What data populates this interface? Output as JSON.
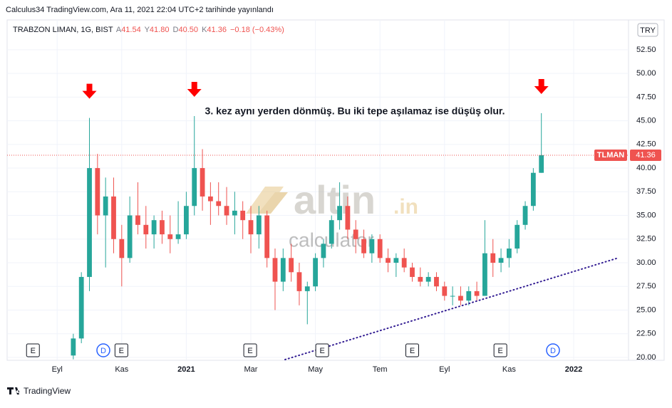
{
  "published": "Calculus34 TradingView.com, Ara 11, 2021 22:04 UTC+2 tarihinde yayınlandı",
  "footer": "TradingView",
  "currency_button": "TRY",
  "watermark": {
    "brand": "altin",
    "domain": ".in",
    "sub": "calculator"
  },
  "header": {
    "symbol": "TRABZON LIMAN, 1G, BIST",
    "fields": [
      {
        "label": "A",
        "value": "41.54"
      },
      {
        "label": "Y",
        "value": "41.80"
      },
      {
        "label": "D",
        "value": "40.50"
      },
      {
        "label": "K",
        "value": "41.36"
      }
    ],
    "change": "−0.18 (−0.43%)"
  },
  "chart_data": {
    "type": "candlestick",
    "annotation": "3. kez aynı yerden dönmüş. Bu iki tepe aşılamaz ise düşüş olur.",
    "symbol_tag": "TLMAN",
    "up_color": "#26a69a",
    "down_color": "#ef5350",
    "grid": true,
    "xlim": [
      -1.55,
      17.7
    ],
    "xticks": [
      {
        "value": 0,
        "label": "Eyl"
      },
      {
        "value": 2,
        "label": "Kas"
      },
      {
        "value": 4,
        "label": "2021"
      },
      {
        "value": 6,
        "label": "Mar"
      },
      {
        "value": 8,
        "label": "May"
      },
      {
        "value": 10,
        "label": "Tem"
      },
      {
        "value": 12,
        "label": "Eyl"
      },
      {
        "value": 14,
        "label": "Kas"
      },
      {
        "value": 16,
        "label": "2022"
      }
    ],
    "ylim": [
      19.77,
      55.5
    ],
    "yticks": [
      {
        "value": 20,
        "label": "20.00"
      },
      {
        "value": 22.5,
        "label": "22.50"
      },
      {
        "value": 25,
        "label": "25.00"
      },
      {
        "value": 27.5,
        "label": "27.50"
      },
      {
        "value": 30,
        "label": "30.00"
      },
      {
        "value": 32.5,
        "label": "32.50"
      },
      {
        "value": 35,
        "label": "35.00"
      },
      {
        "value": 37.5,
        "label": "37.50"
      },
      {
        "value": 40,
        "label": "40.00"
      },
      {
        "value": 42.5,
        "label": "42.50"
      },
      {
        "value": 45,
        "label": "45.00"
      },
      {
        "value": 47.5,
        "label": "47.50"
      },
      {
        "value": 50,
        "label": "50.00"
      },
      {
        "value": 52.5,
        "label": "52.50"
      }
    ],
    "x": [
      0.5,
      0.75,
      1,
      1.25,
      1.5,
      1.75,
      2,
      2.25,
      2.5,
      2.75,
      3,
      3.25,
      3.5,
      3.75,
      4,
      4.25,
      4.5,
      4.75,
      5,
      5.25,
      5.5,
      5.75,
      6,
      6.25,
      6.5,
      6.75,
      7,
      7.25,
      7.5,
      7.75,
      8,
      8.25,
      8.5,
      8.75,
      9,
      9.25,
      9.5,
      9.75,
      10,
      10.25,
      10.5,
      10.75,
      11,
      11.25,
      11.5,
      11.75,
      12,
      12.25,
      12.5,
      12.75,
      13,
      13.25,
      13.5,
      13.75,
      14,
      14.25,
      14.5,
      14.75,
      15
    ],
    "open": [
      20.2,
      22,
      28.5,
      40,
      35,
      37,
      32.5,
      30.5,
      35,
      34,
      33,
      34.5,
      33,
      32.5,
      33,
      36,
      40,
      37,
      36.5,
      36,
      35,
      35.5,
      34.5,
      33,
      35,
      30.5,
      28,
      30.5,
      29,
      27,
      27.5,
      30.5,
      32,
      34.5,
      36,
      33.5,
      32.5,
      31,
      32.5,
      30.5,
      30,
      30.5,
      29.5,
      28.5,
      28,
      28.5,
      27.5,
      26.5,
      26.5,
      26,
      27,
      26.5,
      31,
      30,
      30.5,
      31.5,
      34,
      36,
      39.5
    ],
    "high": [
      22.5,
      29,
      45.3,
      41.5,
      39,
      39,
      34,
      37,
      38.5,
      36,
      35,
      35.5,
      35,
      36.5,
      37.5,
      45.5,
      42,
      38.5,
      38.5,
      38,
      37.5,
      36.5,
      36,
      36,
      35.5,
      31.5,
      31.5,
      32,
      30,
      28,
      31,
      32.5,
      35,
      38.5,
      37,
      34.5,
      33.5,
      33,
      33,
      31.5,
      31,
      31.5,
      30,
      29.5,
      29,
      29,
      28,
      27.5,
      27.5,
      27.5,
      28,
      34.5,
      32.5,
      31.5,
      32.5,
      34.5,
      36.5,
      40,
      45.8
    ],
    "low": [
      19.8,
      21.5,
      27,
      33,
      29.5,
      31,
      27.5,
      30,
      33,
      31.5,
      31.5,
      32,
      31,
      32,
      32.5,
      35,
      35.5,
      34,
      35,
      34,
      33,
      32.5,
      31,
      31.5,
      29.5,
      25,
      27,
      28,
      25.5,
      23.5,
      27,
      29.5,
      31.5,
      33.5,
      32.5,
      31,
      30.5,
      30,
      30,
      29,
      28.5,
      29,
      28,
      27.5,
      27.5,
      27,
      26,
      25.5,
      25.5,
      25.5,
      26,
      26.5,
      28.5,
      29,
      29.5,
      31,
      33.5,
      35.5,
      39.5
    ],
    "close": [
      22,
      28.5,
      40,
      35,
      37,
      32.5,
      30.5,
      35,
      34,
      33,
      34.5,
      33,
      32.5,
      33,
      36,
      40,
      37,
      36.5,
      36,
      35,
      35.5,
      34.5,
      33,
      35,
      30.5,
      28,
      30.5,
      29,
      27,
      27.5,
      30.5,
      32,
      34.5,
      36,
      33.5,
      32.5,
      31,
      32.5,
      30.5,
      30,
      30.5,
      29.5,
      28.5,
      28,
      28.5,
      27.5,
      26.5,
      26.5,
      26,
      27,
      26.5,
      31,
      30,
      30.5,
      31.5,
      34,
      36,
      39.5,
      41.36
    ],
    "trendline": {
      "color": "#311b92",
      "x": [
        7.06,
        17.4
      ],
      "y": [
        19.77,
        30.53
      ]
    },
    "events": [
      {
        "x": -0.75,
        "label": "E"
      },
      {
        "x": 1.43,
        "label": "D"
      },
      {
        "x": 1.99,
        "label": "E"
      },
      {
        "x": 5.98,
        "label": "E"
      },
      {
        "x": 8.21,
        "label": "E"
      },
      {
        "x": 11.0,
        "label": "E"
      },
      {
        "x": 13.73,
        "label": "E"
      },
      {
        "x": 15.36,
        "label": "D"
      }
    ]
  }
}
